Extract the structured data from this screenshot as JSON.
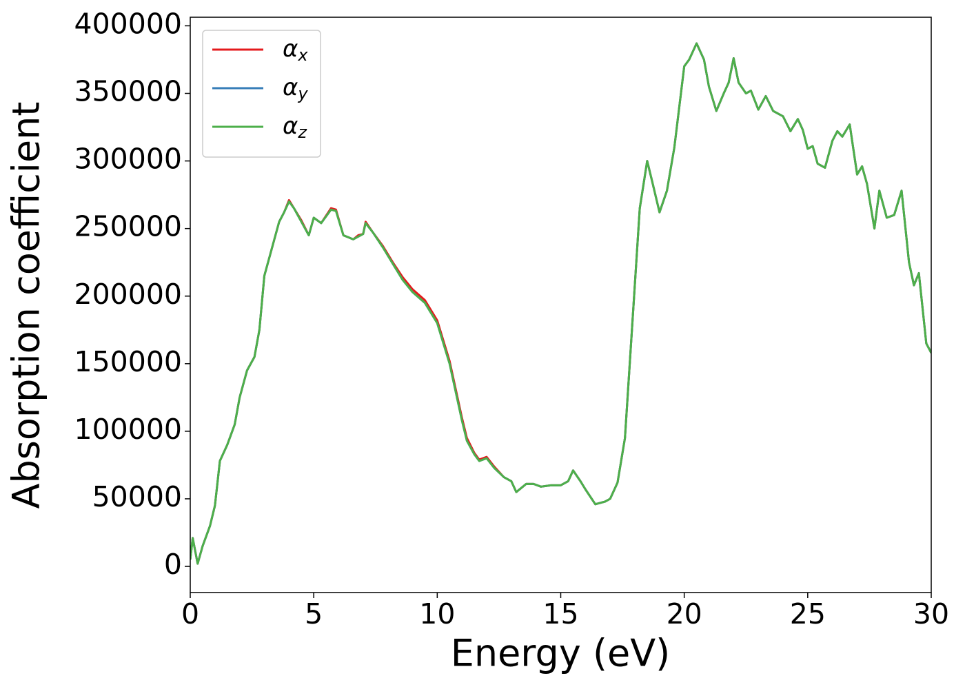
{
  "chart_data": {
    "type": "line",
    "xlabel": "Energy (eV)",
    "ylabel": "Absorption coefficient",
    "x": [
      0,
      0.1,
      0.3,
      0.5,
      0.8,
      1.0,
      1.2,
      1.5,
      1.8,
      2.0,
      2.3,
      2.6,
      2.8,
      3.0,
      3.3,
      3.6,
      3.8,
      4.0,
      4.2,
      4.5,
      4.8,
      5.0,
      5.3,
      5.7,
      5.9,
      6.2,
      6.6,
      6.8,
      7.0,
      7.1,
      7.4,
      7.8,
      8.2,
      8.6,
      9.0,
      9.5,
      10.0,
      10.5,
      11.0,
      11.2,
      11.5,
      11.7,
      12.0,
      12.3,
      12.7,
      13.0,
      13.2,
      13.6,
      13.9,
      14.2,
      14.6,
      15.0,
      15.3,
      15.5,
      15.8,
      16.0,
      16.4,
      16.8,
      17.0,
      17.3,
      17.6,
      17.9,
      18.2,
      18.5,
      18.7,
      19.0,
      19.3,
      19.6,
      20.0,
      20.2,
      20.5,
      20.8,
      21.0,
      21.3,
      21.6,
      21.8,
      22.0,
      22.2,
      22.5,
      22.7,
      23.0,
      23.3,
      23.6,
      24.0,
      24.3,
      24.6,
      24.8,
      25.0,
      25.2,
      25.4,
      25.7,
      26.0,
      26.2,
      26.4,
      26.7,
      27.0,
      27.2,
      27.4,
      27.7,
      27.9,
      28.2,
      28.5,
      28.8,
      29.1,
      29.3,
      29.5,
      29.8,
      30.0
    ],
    "series": [
      {
        "name": "αx",
        "color": "#e41a1c",
        "values": [
          5000,
          21000,
          2000,
          15000,
          30000,
          45000,
          78000,
          90000,
          105000,
          125000,
          145000,
          155000,
          175000,
          215000,
          235000,
          255000,
          262000,
          271000,
          265000,
          256000,
          245000,
          258000,
          254000,
          265000,
          264000,
          245000,
          242000,
          245000,
          246000,
          255000,
          247000,
          237000,
          225000,
          214000,
          205000,
          197000,
          182000,
          152000,
          110000,
          95000,
          84000,
          79000,
          81000,
          74000,
          66000,
          63000,
          55000,
          61000,
          61000,
          59000,
          60000,
          60000,
          63000,
          71000,
          63000,
          57000,
          46000,
          48000,
          50000,
          62000,
          95000,
          180000,
          265000,
          300000,
          285000,
          262000,
          278000,
          310000,
          370000,
          375000,
          387000,
          375000,
          355000,
          337000,
          350000,
          358000,
          376000,
          358000,
          350000,
          352000,
          338000,
          348000,
          337000,
          333000,
          322000,
          331000,
          323000,
          309000,
          311000,
          298000,
          295000,
          315000,
          322000,
          318000,
          327000,
          290000,
          296000,
          283000,
          250000,
          278000,
          258000,
          260000,
          278000,
          225000,
          208000,
          217000,
          165000,
          158000
        ]
      },
      {
        "name": "αy",
        "color": "#377eb8",
        "values": [
          5000,
          21000,
          2000,
          15000,
          30000,
          45000,
          78000,
          90000,
          105000,
          125000,
          145000,
          155000,
          175000,
          215000,
          235000,
          255000,
          262000,
          270000,
          265000,
          255000,
          245000,
          258000,
          254000,
          264000,
          263000,
          245000,
          242000,
          244000,
          246000,
          254000,
          247000,
          236000,
          224000,
          212000,
          203000,
          195000,
          180000,
          150000,
          108000,
          93000,
          83000,
          78000,
          80000,
          73000,
          66000,
          63000,
          55000,
          61000,
          61000,
          59000,
          60000,
          60000,
          63000,
          71000,
          63000,
          57000,
          46000,
          48000,
          50000,
          62000,
          95000,
          180000,
          265000,
          300000,
          285000,
          262000,
          278000,
          310000,
          370000,
          375000,
          387000,
          375000,
          355000,
          337000,
          350000,
          358000,
          376000,
          358000,
          350000,
          352000,
          338000,
          348000,
          337000,
          333000,
          322000,
          331000,
          323000,
          309000,
          311000,
          298000,
          295000,
          315000,
          322000,
          318000,
          327000,
          290000,
          296000,
          283000,
          250000,
          278000,
          258000,
          260000,
          278000,
          225000,
          208000,
          217000,
          165000,
          158000
        ]
      },
      {
        "name": "αz",
        "color": "#4daf4a",
        "values": [
          5000,
          21000,
          2000,
          15000,
          30000,
          45000,
          78000,
          90000,
          105000,
          125000,
          145000,
          155000,
          175000,
          215000,
          235000,
          255000,
          262000,
          270000,
          265000,
          255000,
          245000,
          258000,
          254000,
          264000,
          263000,
          245000,
          242000,
          244000,
          246000,
          254000,
          247000,
          236000,
          224000,
          212000,
          203000,
          195000,
          180000,
          150000,
          108000,
          93000,
          83000,
          78000,
          80000,
          73000,
          66000,
          63000,
          55000,
          61000,
          61000,
          59000,
          60000,
          60000,
          63000,
          71000,
          63000,
          57000,
          46000,
          48000,
          50000,
          62000,
          95000,
          180000,
          265000,
          300000,
          285000,
          262000,
          278000,
          310000,
          370000,
          375000,
          387000,
          375000,
          355000,
          337000,
          350000,
          358000,
          376000,
          358000,
          350000,
          352000,
          338000,
          348000,
          337000,
          333000,
          322000,
          331000,
          323000,
          309000,
          311000,
          298000,
          295000,
          315000,
          322000,
          318000,
          327000,
          290000,
          296000,
          283000,
          250000,
          278000,
          258000,
          260000,
          278000,
          225000,
          208000,
          217000,
          165000,
          158000
        ]
      }
    ],
    "xlim": [
      0,
      30
    ],
    "xticks": [
      0,
      5,
      10,
      15,
      20,
      25,
      30
    ],
    "ylim": [
      -19350,
      406350
    ],
    "yticks": [
      0,
      50000,
      100000,
      150000,
      200000,
      250000,
      300000,
      350000,
      400000
    ],
    "grid": false,
    "legend": "upper left"
  }
}
